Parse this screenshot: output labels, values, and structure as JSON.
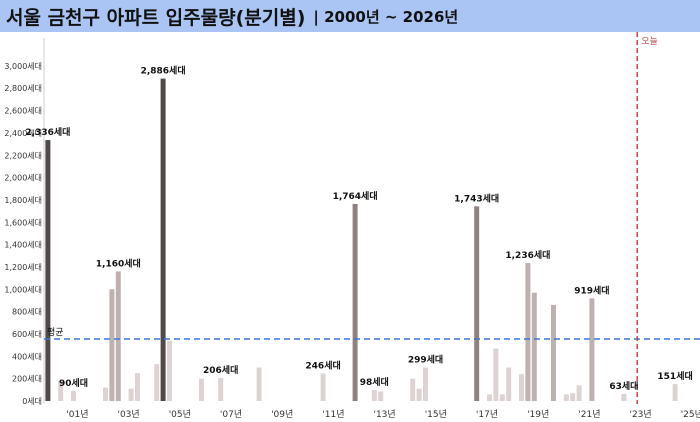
{
  "title": {
    "main": "서울 금천구 아파트 입주물량(분기별)",
    "sub": "| 2000년 ~ 2026년"
  },
  "colors": {
    "title_bg": "#aac4f4",
    "bar_dark": "#524a49",
    "bar_mid": "#8e8180",
    "bar_light": "#bdb2b0",
    "bar_pale": "#dcd3d2",
    "average_line": "#3b74d6",
    "today_line": "#c24646"
  },
  "chart_data": {
    "type": "bar",
    "title": "서울 금천구 아파트 입주물량(분기별)",
    "subtitle": "| 2000년 ~ 2026년",
    "ylim": [
      0,
      3100
    ],
    "y_ticks": [
      0,
      200,
      400,
      600,
      800,
      1000,
      1200,
      1400,
      1600,
      1800,
      2000,
      2200,
      2400,
      2600,
      2800,
      3000
    ],
    "y_tick_labels": [
      "0세대",
      "200세대",
      "400세대",
      "600세대",
      "800세대",
      "1,000세대",
      "1,200세대",
      "1,400세대",
      "1,600세대",
      "1,800세대",
      "2,000세대",
      "2,200세대",
      "2,400세대",
      "2,600세대",
      "2,800세대",
      "3,000세대"
    ],
    "x_tick_labels": [
      {
        "year": 2001,
        "label": "'01년"
      },
      {
        "year": 2003,
        "label": "'03년"
      },
      {
        "year": 2005,
        "label": "'05년"
      },
      {
        "year": 2007,
        "label": "'07년"
      },
      {
        "year": 2009,
        "label": "'09년"
      },
      {
        "year": 2011,
        "label": "'11년"
      },
      {
        "year": 2013,
        "label": "'13년"
      },
      {
        "year": 2015,
        "label": "'15년"
      },
      {
        "year": 2017,
        "label": "'17년"
      },
      {
        "year": 2019,
        "label": "'19년"
      },
      {
        "year": 2021,
        "label": "'21년"
      },
      {
        "year": 2023,
        "label": "'23년"
      },
      {
        "year": 2025,
        "label": "'25년"
      }
    ],
    "average": {
      "value": 555,
      "label": "평균"
    },
    "today": {
      "quarter": "2023Q2",
      "label": "오늘"
    },
    "bars": [
      {
        "q": "2000Q2",
        "value": 2336,
        "shade": "dark",
        "label": "2,336세대"
      },
      {
        "q": "2000Q4",
        "value": 180,
        "shade": "pale"
      },
      {
        "q": "2001Q2",
        "value": 90,
        "shade": "pale",
        "label": "90세대"
      },
      {
        "q": "2002Q3",
        "value": 120,
        "shade": "pale"
      },
      {
        "q": "2002Q4",
        "value": 1000,
        "shade": "light"
      },
      {
        "q": "2003Q1",
        "value": 1160,
        "shade": "light",
        "label": "1,160세대"
      },
      {
        "q": "2003Q3",
        "value": 110,
        "shade": "pale"
      },
      {
        "q": "2003Q4",
        "value": 250,
        "shade": "pale"
      },
      {
        "q": "2004Q3",
        "value": 330,
        "shade": "pale"
      },
      {
        "q": "2004Q4",
        "value": 2886,
        "shade": "dark",
        "label": "2,886세대"
      },
      {
        "q": "2005Q1",
        "value": 540,
        "shade": "pale"
      },
      {
        "q": "2006Q2",
        "value": 200,
        "shade": "pale"
      },
      {
        "q": "2007Q1",
        "value": 206,
        "shade": "pale",
        "label": "206세대"
      },
      {
        "q": "2008Q3",
        "value": 300,
        "shade": "pale"
      },
      {
        "q": "2011Q1",
        "value": 246,
        "shade": "pale",
        "label": "246세대"
      },
      {
        "q": "2012Q2",
        "value": 1764,
        "shade": "mid",
        "label": "1,764세대"
      },
      {
        "q": "2013Q1",
        "value": 98,
        "shade": "pale",
        "label": "98세대"
      },
      {
        "q": "2013Q2",
        "value": 85,
        "shade": "pale"
      },
      {
        "q": "2014Q3",
        "value": 200,
        "shade": "pale"
      },
      {
        "q": "2014Q4",
        "value": 110,
        "shade": "pale"
      },
      {
        "q": "2015Q1",
        "value": 299,
        "shade": "pale",
        "label": "299세대"
      },
      {
        "q": "2017Q1",
        "value": 1743,
        "shade": "mid",
        "label": "1,743세대"
      },
      {
        "q": "2017Q3",
        "value": 60,
        "shade": "pale"
      },
      {
        "q": "2017Q4",
        "value": 470,
        "shade": "pale"
      },
      {
        "q": "2018Q1",
        "value": 60,
        "shade": "pale"
      },
      {
        "q": "2018Q2",
        "value": 300,
        "shade": "pale"
      },
      {
        "q": "2018Q4",
        "value": 240,
        "shade": "pale"
      },
      {
        "q": "2019Q1",
        "value": 1236,
        "shade": "light",
        "label": "1,236세대"
      },
      {
        "q": "2019Q2",
        "value": 970,
        "shade": "light"
      },
      {
        "q": "2020Q1",
        "value": 860,
        "shade": "light"
      },
      {
        "q": "2020Q3",
        "value": 60,
        "shade": "pale"
      },
      {
        "q": "2020Q4",
        "value": 70,
        "shade": "pale"
      },
      {
        "q": "2021Q1",
        "value": 140,
        "shade": "pale"
      },
      {
        "q": "2021Q3",
        "value": 919,
        "shade": "light",
        "label": "919세대"
      },
      {
        "q": "2022Q4",
        "value": 63,
        "shade": "pale",
        "label": "63세대"
      },
      {
        "q": "2024Q4",
        "value": 151,
        "shade": "pale",
        "label": "151세대"
      }
    ]
  }
}
